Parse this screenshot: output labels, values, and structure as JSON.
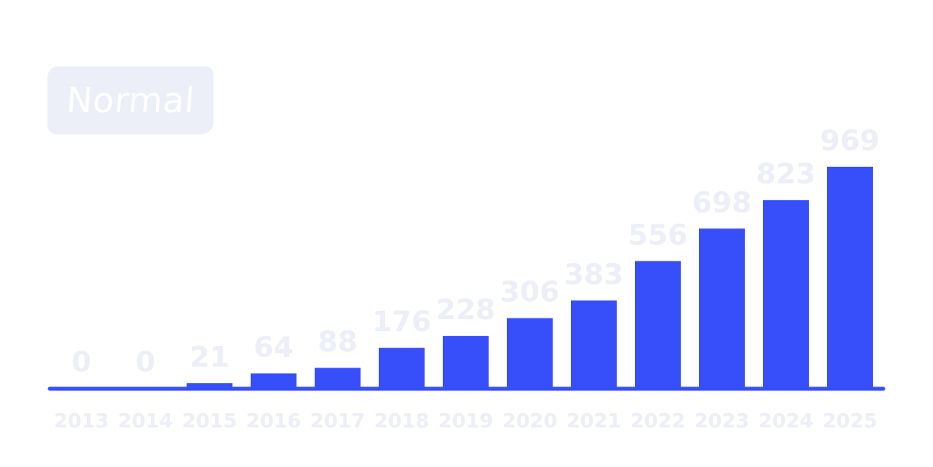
{
  "badge": {
    "label": "Normal"
  },
  "colors": {
    "bar": "#364ffa",
    "baseline": "#364ffa",
    "labels": "#eceef8",
    "badge_background": "#eceef8"
  },
  "chart_data": {
    "type": "bar",
    "categories": [
      "2013",
      "2014",
      "2015",
      "2016",
      "2017",
      "2018",
      "2019",
      "2020",
      "2021",
      "2022",
      "2023",
      "2024",
      "2025"
    ],
    "values": [
      0,
      0,
      21,
      64,
      88,
      176,
      228,
      306,
      383,
      556,
      698,
      823,
      969
    ],
    "data_labels": [
      "0",
      "0",
      "21",
      "64",
      "88",
      "176",
      "228",
      "306",
      "383",
      "556",
      "698",
      "823",
      "969"
    ],
    "ylim": [
      0,
      969
    ],
    "grid": false,
    "legend": "none"
  }
}
